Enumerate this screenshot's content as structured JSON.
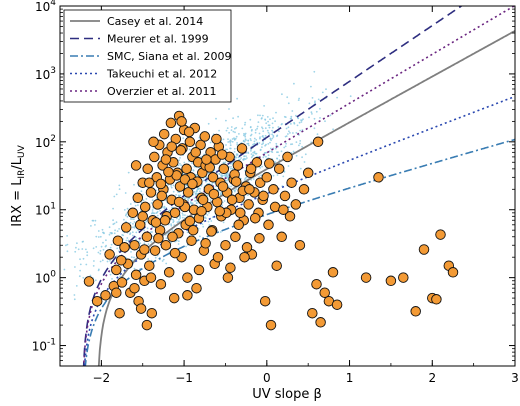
{
  "chart_data": {
    "type": "scatter",
    "xlabel": "UV slope β",
    "ylabel": "IRX = L_IR/L_UV",
    "xlim": [
      -2.5,
      3
    ],
    "ylim": [
      0.05,
      10000
    ],
    "yscale": "log",
    "x_ticks": [
      {
        "v": -2,
        "label": "−2"
      },
      {
        "v": -1,
        "label": "−1"
      },
      {
        "v": 0,
        "label": "0"
      },
      {
        "v": 1,
        "label": "1"
      },
      {
        "v": 2,
        "label": "2"
      },
      {
        "v": 3,
        "label": "3"
      }
    ],
    "y_ticks": [
      {
        "v": 0.1,
        "base": "10",
        "exp": "-1"
      },
      {
        "v": 1,
        "base": "10",
        "exp": "0"
      },
      {
        "v": 10,
        "base": "10",
        "exp": "1"
      },
      {
        "v": 100,
        "base": "10",
        "exp": "2"
      },
      {
        "v": 1000,
        "base": "10",
        "exp": "3"
      },
      {
        "v": 10000,
        "base": "10",
        "exp": "4"
      }
    ],
    "legend_position": "top-left",
    "colors": {
      "sample_fill": "#f39a35",
      "sample_edge": "#111111",
      "background_points": "#87c9e2"
    },
    "curves": [
      {
        "name": "Casey et al. 2014",
        "color": "#7f7f7f",
        "dash": "solid",
        "A": 1.65,
        "B": 1.68,
        "beta0": -2.05
      },
      {
        "name": "Meurer et al. 1999",
        "color": "#2e2e80",
        "dash": "dashed",
        "A": 1.66,
        "B": 2.05,
        "beta0": -2.23
      },
      {
        "name": "SMC, Siana et al. 2009",
        "color": "#3a7db3",
        "dash": "dashdot",
        "A": 1.66,
        "B": 0.86,
        "beta0": -2.23
      },
      {
        "name": "Takeuchi et al. 2012",
        "color": "#2a48b0",
        "dash": "dotted",
        "A": 1.66,
        "B": 1.16,
        "beta0": -2.23
      },
      {
        "name": "Overzier et al. 2011",
        "color": "#6a2580",
        "dash": "dotted",
        "A": 1.66,
        "B": 1.8,
        "beta0": -2.23
      }
    ],
    "points": [
      [
        -2.15,
        0.88
      ],
      [
        -2.05,
        0.45
      ],
      [
        -1.95,
        0.55
      ],
      [
        -1.9,
        2.2
      ],
      [
        -1.85,
        0.75
      ],
      [
        -1.82,
        1.3
      ],
      [
        -1.8,
        3.5
      ],
      [
        -1.78,
        0.3
      ],
      [
        -1.75,
        0.85
      ],
      [
        -1.72,
        2.8
      ],
      [
        -1.7,
        5.5
      ],
      [
        -1.68,
        1.6
      ],
      [
        -1.65,
        0.6
      ],
      [
        -1.62,
        9.0
      ],
      [
        -1.6,
        3.0
      ],
      [
        -1.58,
        1.1
      ],
      [
        -1.56,
        15.0
      ],
      [
        -1.55,
        0.45
      ],
      [
        -1.53,
        6.0
      ],
      [
        -1.52,
        2.2
      ],
      [
        -1.5,
        25.0
      ],
      [
        -1.48,
        0.9
      ],
      [
        -1.47,
        11.0
      ],
      [
        -1.45,
        4.0
      ],
      [
        -1.44,
        40.0
      ],
      [
        -1.42,
        1.5
      ],
      [
        -1.4,
        18.0
      ],
      [
        -1.39,
        0.3
      ],
      [
        -1.38,
        7.0
      ],
      [
        -1.36,
        60.0
      ],
      [
        -1.35,
        2.5
      ],
      [
        -1.33,
        30.0
      ],
      [
        -1.32,
        12.0
      ],
      [
        -1.3,
        90.0
      ],
      [
        -1.29,
        5.0
      ],
      [
        -1.28,
        0.8
      ],
      [
        -1.26,
        45.0
      ],
      [
        -1.25,
        20.0
      ],
      [
        -1.24,
        130.0
      ],
      [
        -1.22,
        3.0
      ],
      [
        -1.21,
        8.0
      ],
      [
        -1.2,
        70.0
      ],
      [
        -1.18,
        1.2
      ],
      [
        -1.17,
        28.0
      ],
      [
        -1.16,
        190.0
      ],
      [
        -1.15,
        14.0
      ],
      [
        -1.13,
        50.0
      ],
      [
        -1.12,
        0.5
      ],
      [
        -1.11,
        9.0
      ],
      [
        -1.1,
        110.0
      ],
      [
        -1.08,
        35.0
      ],
      [
        -1.07,
        4.5
      ],
      [
        -1.06,
        240.0
      ],
      [
        -1.05,
        22.0
      ],
      [
        -1.03,
        2.0
      ],
      [
        -1.02,
        80.0
      ],
      [
        -1.01,
        12.0
      ],
      [
        -1.0,
        150.0
      ],
      [
        -0.98,
        6.0
      ],
      [
        -0.97,
        40.0
      ],
      [
        -0.96,
        1.0
      ],
      [
        -0.95,
        18.0
      ],
      [
        -0.93,
        100.0
      ],
      [
        -0.92,
        30.0
      ],
      [
        -0.91,
        3.5
      ],
      [
        -0.9,
        60.0
      ],
      [
        -0.88,
        10.0
      ],
      [
        -0.87,
        160.0
      ],
      [
        -0.86,
        25.0
      ],
      [
        -0.85,
        0.7
      ],
      [
        -0.83,
        50.0
      ],
      [
        -0.82,
        7.5
      ],
      [
        -0.8,
        90.0
      ],
      [
        -0.79,
        15.0
      ],
      [
        -0.78,
        35.0
      ],
      [
        -0.76,
        2.5
      ],
      [
        -0.75,
        120.0
      ],
      [
        -0.74,
        45.0
      ],
      [
        -0.72,
        11.0
      ],
      [
        -0.7,
        20.0
      ],
      [
        -0.68,
        70.0
      ],
      [
        -0.66,
        5.0
      ],
      [
        -0.65,
        30.0
      ],
      [
        -0.63,
        1.6
      ],
      [
        -0.62,
        55.0
      ],
      [
        -0.6,
        13.0
      ],
      [
        -0.58,
        85.0
      ],
      [
        -0.56,
        25.0
      ],
      [
        -0.55,
        8.0
      ],
      [
        -0.52,
        40.0
      ],
      [
        -0.5,
        3.0
      ],
      [
        -0.48,
        18.0
      ],
      [
        -0.45,
        60.0
      ],
      [
        -0.43,
        10.0
      ],
      [
        -0.4,
        28.0
      ],
      [
        -0.38,
        4.0
      ],
      [
        -0.35,
        45.0
      ],
      [
        -0.33,
        15.0
      ],
      [
        -0.3,
        80.0
      ],
      [
        -0.28,
        7.0
      ],
      [
        -0.25,
        22.0
      ],
      [
        -0.22,
        12.0
      ],
      [
        -0.2,
        35.0
      ],
      [
        -0.18,
        2.2
      ],
      [
        -0.15,
        18.0
      ],
      [
        -0.12,
        50.0
      ],
      [
        -0.1,
        9.0
      ],
      [
        -0.08,
        25.0
      ],
      [
        -0.05,
        14.0
      ],
      [
        -0.02,
        0.45
      ],
      [
        0.0,
        30.0
      ],
      [
        0.02,
        6.0
      ],
      [
        0.05,
        0.2
      ],
      [
        0.08,
        20.0
      ],
      [
        0.1,
        11.0
      ],
      [
        0.15,
        40.0
      ],
      [
        0.18,
        4.0
      ],
      [
        0.22,
        16.0
      ],
      [
        0.25,
        60.0
      ],
      [
        0.28,
        8.0
      ],
      [
        0.3,
        25.0
      ],
      [
        0.35,
        12.0
      ],
      [
        0.4,
        3.0
      ],
      [
        0.45,
        20.0
      ],
      [
        0.5,
        35.0
      ],
      [
        0.55,
        0.3
      ],
      [
        0.6,
        0.8
      ],
      [
        0.62,
        100.0
      ],
      [
        0.65,
        0.22
      ],
      [
        0.7,
        0.6
      ],
      [
        0.75,
        0.45
      ],
      [
        0.8,
        1.2
      ],
      [
        0.85,
        0.4
      ],
      [
        1.2,
        1.0
      ],
      [
        1.35,
        30.0
      ],
      [
        1.5,
        0.9
      ],
      [
        1.65,
        1.0
      ],
      [
        1.8,
        0.32
      ],
      [
        1.9,
        2.6
      ],
      [
        2.0,
        0.5
      ],
      [
        2.05,
        0.48
      ],
      [
        2.1,
        4.3
      ],
      [
        2.2,
        1.5
      ],
      [
        2.25,
        1.2
      ],
      [
        -1.82,
        0.6
      ],
      [
        -1.76,
        1.8
      ],
      [
        -1.6,
        0.7
      ],
      [
        -1.52,
        0.35
      ],
      [
        -1.48,
        2.6
      ],
      [
        -1.45,
        0.2
      ],
      [
        -1.4,
        1.0
      ],
      [
        -1.34,
        6.5
      ],
      [
        -1.28,
        24.0
      ],
      [
        -1.22,
        55.0
      ],
      [
        -1.14,
        4.0
      ],
      [
        -1.09,
        32.0
      ],
      [
        -1.04,
        75.0
      ],
      [
        -0.99,
        11.0
      ],
      [
        -0.94,
        140.0
      ],
      [
        -0.89,
        5.0
      ],
      [
        -0.84,
        26.0
      ],
      [
        -0.79,
        9.5
      ],
      [
        -0.74,
        3.2
      ],
      [
        -0.69,
        42.0
      ],
      [
        -0.64,
        17.0
      ],
      [
        -0.59,
        2.0
      ],
      [
        -0.54,
        65.0
      ],
      [
        -0.49,
        9.0
      ],
      [
        -0.44,
        1.4
      ],
      [
        -0.39,
        33.0
      ],
      [
        -0.34,
        6.0
      ],
      [
        -0.29,
        19.0
      ],
      [
        -0.24,
        2.8
      ],
      [
        -0.19,
        40.0
      ],
      [
        -0.14,
        7.5
      ],
      [
        -0.09,
        3.8
      ],
      [
        -0.04,
        16.0
      ],
      [
        0.03,
        48.0
      ],
      [
        0.12,
        1.5
      ],
      [
        0.2,
        10.0
      ],
      [
        -1.58,
        45.0
      ],
      [
        -1.5,
        8.0
      ],
      [
        -1.42,
        25.0
      ],
      [
        -1.37,
        100.0
      ],
      [
        -1.31,
        3.8
      ],
      [
        -1.27,
        16.0
      ],
      [
        -1.23,
        7.0
      ],
      [
        -1.19,
        36.0
      ],
      [
        -1.15,
        85.0
      ],
      [
        -1.11,
        2.3
      ],
      [
        -1.06,
        13.0
      ],
      [
        -1.03,
        200.0
      ],
      [
        -0.99,
        28.0
      ],
      [
        -0.96,
        0.55
      ],
      [
        -0.93,
        6.8
      ],
      [
        -0.9,
        24.0
      ],
      [
        -0.86,
        70.0
      ],
      [
        -0.82,
        1.3
      ],
      [
        -0.77,
        14.0
      ],
      [
        -0.73,
        55.0
      ],
      [
        -0.67,
        4.8
      ],
      [
        -0.61,
        110.0
      ],
      [
        -0.57,
        9.5
      ],
      [
        -0.53,
        22.0
      ],
      [
        -0.47,
        1.0
      ],
      [
        -0.42,
        14.0
      ],
      [
        -0.37,
        26.0
      ],
      [
        -0.32,
        9.0
      ],
      [
        -0.27,
        2.0
      ],
      [
        -0.21,
        20.0
      ]
    ]
  },
  "legend": {
    "entries": [
      "Casey et al. 2014",
      "Meurer et al. 1999",
      "SMC, Siana et al. 2009",
      "Takeuchi et al. 2012",
      "Overzier et al. 2011"
    ]
  }
}
